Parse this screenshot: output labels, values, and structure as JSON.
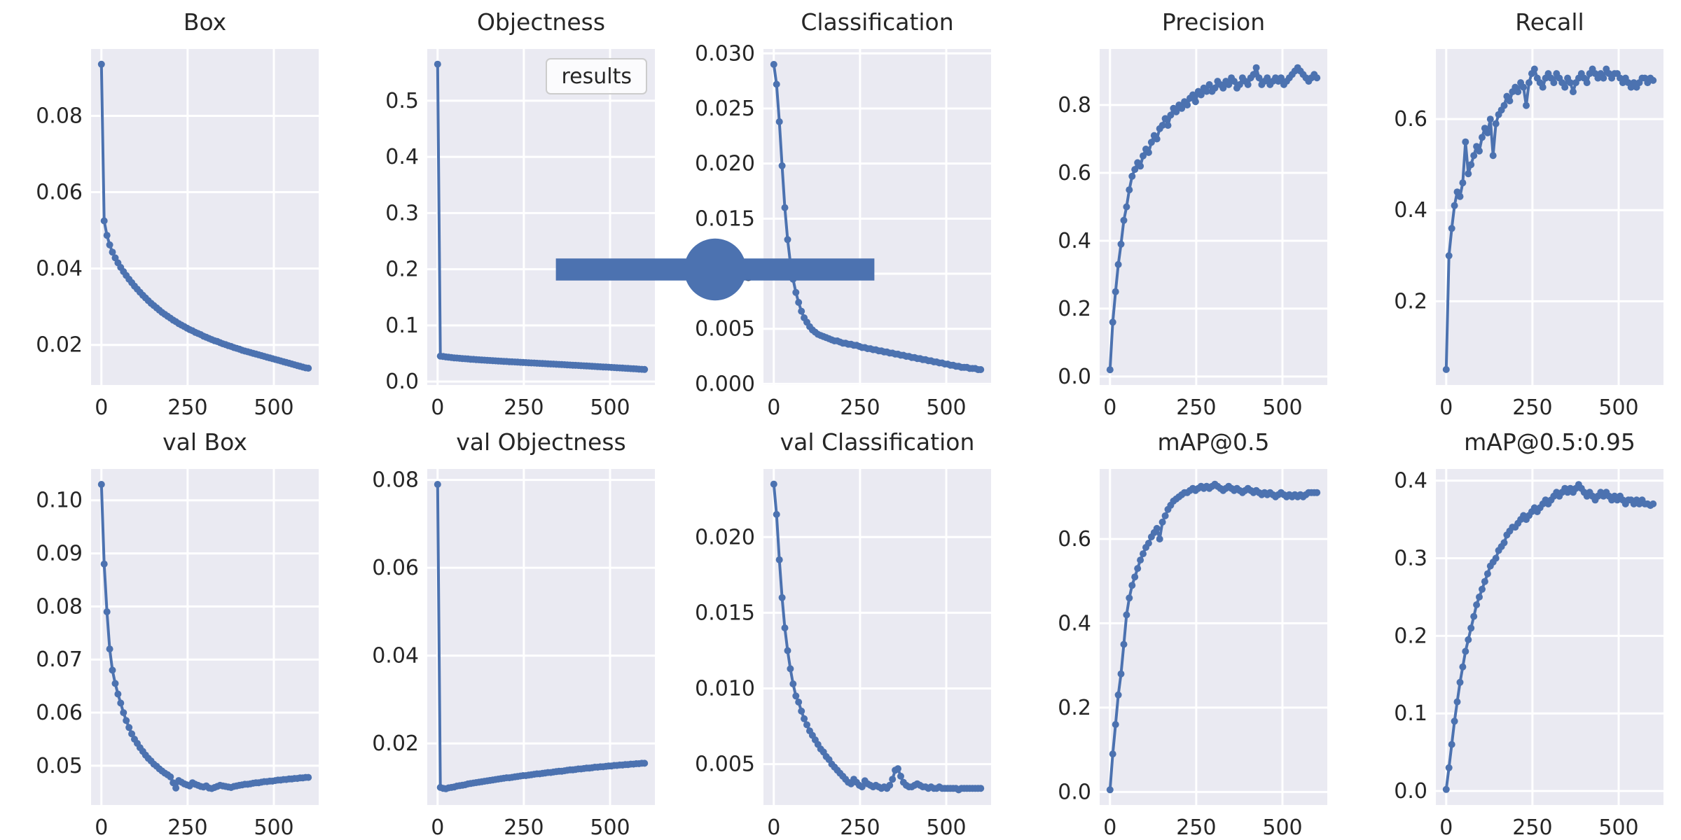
{
  "figure": {
    "background": "#ffffff",
    "axes_background": "#eaeaf2",
    "grid_color": "#ffffff",
    "accent": "#4c72b0",
    "text_color": "#262626",
    "legend_border": "#cccccc",
    "legend_label": "results"
  },
  "chart_data": [
    {
      "type": "line",
      "title": "Box",
      "xlabel": "",
      "ylabel": "",
      "x_start": 0,
      "x_step": 8,
      "xlim": [
        -30,
        630
      ],
      "ylim": [
        0.0095,
        0.0975
      ],
      "xticks": [
        0,
        250,
        500
      ],
      "xtick_labels": [
        "0",
        "250",
        "500"
      ],
      "ytick_values": [
        0.02,
        0.04,
        0.06,
        0.08
      ],
      "ytick_labels": [
        "0.02",
        "0.04",
        "0.06",
        "0.08"
      ],
      "grid": true,
      "values": [
        0.0935,
        0.0525,
        0.0487,
        0.0462,
        0.0443,
        0.0428,
        0.0415,
        0.0403,
        0.0392,
        0.0382,
        0.0372,
        0.0363,
        0.0354,
        0.0346,
        0.0338,
        0.033,
        0.0323,
        0.0316,
        0.0309,
        0.0303,
        0.0297,
        0.0291,
        0.0285,
        0.028,
        0.0275,
        0.027,
        0.0265,
        0.0261,
        0.0256,
        0.0252,
        0.0248,
        0.0244,
        0.024,
        0.0237,
        0.0233,
        0.023,
        0.0227,
        0.0223,
        0.022,
        0.0217,
        0.0214,
        0.0211,
        0.0209,
        0.0206,
        0.0203,
        0.0201,
        0.0198,
        0.0196,
        0.0193,
        0.0191,
        0.0189,
        0.0186,
        0.0184,
        0.0182,
        0.018,
        0.0178,
        0.0176,
        0.0174,
        0.0172,
        0.017,
        0.0168,
        0.0166,
        0.0164,
        0.0162,
        0.016,
        0.0158,
        0.0156,
        0.0154,
        0.0152,
        0.015,
        0.0148,
        0.0146,
        0.0144,
        0.0142,
        0.014,
        0.0139
      ]
    },
    {
      "type": "line",
      "title": "Objectness",
      "xlabel": "",
      "ylabel": "",
      "legend_label": "results",
      "legend_position": "upper right",
      "x_start": 0,
      "x_step": 8,
      "xlim": [
        -30,
        630
      ],
      "ylim": [
        -0.006,
        0.592
      ],
      "xticks": [
        0,
        250,
        500
      ],
      "xtick_labels": [
        "0",
        "250",
        "500"
      ],
      "ytick_values": [
        0.0,
        0.1,
        0.2,
        0.3,
        0.4,
        0.5
      ],
      "ytick_labels": [
        "0.0",
        "0.1",
        "0.2",
        "0.3",
        "0.4",
        "0.5"
      ],
      "grid": true,
      "values": [
        0.565,
        0.0455,
        0.0447,
        0.044,
        0.0434,
        0.0429,
        0.0424,
        0.042,
        0.0415,
        0.0411,
        0.0407,
        0.0403,
        0.0399,
        0.0396,
        0.0392,
        0.0389,
        0.0385,
        0.0382,
        0.0379,
        0.0376,
        0.0373,
        0.037,
        0.0367,
        0.0364,
        0.0361,
        0.0358,
        0.0355,
        0.0352,
        0.035,
        0.0347,
        0.0344,
        0.0341,
        0.0339,
        0.0336,
        0.0333,
        0.0331,
        0.0328,
        0.0325,
        0.0323,
        0.032,
        0.0317,
        0.0314,
        0.0312,
        0.0309,
        0.0306,
        0.0304,
        0.0301,
        0.0298,
        0.0295,
        0.0293,
        0.029,
        0.0287,
        0.0284,
        0.0281,
        0.0279,
        0.0276,
        0.0273,
        0.027,
        0.0267,
        0.0264,
        0.0262,
        0.0259,
        0.0256,
        0.0253,
        0.025,
        0.0247,
        0.0244,
        0.0241,
        0.0238,
        0.0235,
        0.0232,
        0.0229,
        0.0226,
        0.0222,
        0.0219,
        0.0216
      ]
    },
    {
      "type": "line",
      "title": "Classification",
      "xlabel": "",
      "ylabel": "",
      "x_start": 0,
      "x_step": 8,
      "xlim": [
        -30,
        630
      ],
      "ylim": [
        -0.0001,
        0.0304
      ],
      "xticks": [
        0,
        250,
        500
      ],
      "xtick_labels": [
        "0",
        "250",
        "500"
      ],
      "ytick_values": [
        0.0,
        0.005,
        0.01,
        0.015,
        0.02,
        0.025,
        0.03
      ],
      "ytick_labels": [
        "0.000",
        "0.005",
        "0.010",
        "0.015",
        "0.020",
        "0.025",
        "0.030"
      ],
      "grid": true,
      "values": [
        0.029,
        0.0272,
        0.0238,
        0.0198,
        0.016,
        0.0131,
        0.011,
        0.0095,
        0.0083,
        0.0074,
        0.0066,
        0.006,
        0.0056,
        0.0052,
        0.0049,
        0.0047,
        0.0045,
        0.0044,
        0.0043,
        0.0042,
        0.0041,
        0.004,
        0.0039,
        0.0039,
        0.0038,
        0.0037,
        0.0037,
        0.0036,
        0.0036,
        0.0035,
        0.0035,
        0.0034,
        0.0033,
        0.0033,
        0.0032,
        0.0032,
        0.0031,
        0.0031,
        0.003,
        0.003,
        0.0029,
        0.0029,
        0.0028,
        0.0028,
        0.0027,
        0.0027,
        0.0026,
        0.0026,
        0.0025,
        0.0025,
        0.0024,
        0.0024,
        0.0023,
        0.0023,
        0.0022,
        0.0022,
        0.0021,
        0.0021,
        0.002,
        0.002,
        0.0019,
        0.0019,
        0.0018,
        0.0018,
        0.0017,
        0.0017,
        0.0016,
        0.0016,
        0.0015,
        0.0015,
        0.0015,
        0.0014,
        0.0014,
        0.0014,
        0.0013,
        0.0013
      ]
    },
    {
      "type": "line",
      "title": "Precision",
      "xlabel": "",
      "ylabel": "",
      "x_start": 0,
      "x_step": 8,
      "xlim": [
        -30,
        630
      ],
      "ylim": [
        -0.025,
        0.965
      ],
      "xticks": [
        0,
        250,
        500
      ],
      "xtick_labels": [
        "0",
        "250",
        "500"
      ],
      "ytick_values": [
        0.0,
        0.2,
        0.4,
        0.6,
        0.8
      ],
      "ytick_labels": [
        "0.0",
        "0.2",
        "0.4",
        "0.6",
        "0.8"
      ],
      "grid": true,
      "values": [
        0.02,
        0.16,
        0.25,
        0.33,
        0.39,
        0.46,
        0.5,
        0.55,
        0.59,
        0.61,
        0.63,
        0.62,
        0.65,
        0.67,
        0.66,
        0.69,
        0.71,
        0.7,
        0.73,
        0.74,
        0.76,
        0.74,
        0.77,
        0.79,
        0.78,
        0.8,
        0.79,
        0.81,
        0.8,
        0.82,
        0.83,
        0.81,
        0.84,
        0.83,
        0.85,
        0.84,
        0.86,
        0.84,
        0.85,
        0.87,
        0.86,
        0.85,
        0.87,
        0.86,
        0.88,
        0.87,
        0.85,
        0.86,
        0.88,
        0.87,
        0.86,
        0.88,
        0.89,
        0.91,
        0.88,
        0.86,
        0.87,
        0.88,
        0.86,
        0.87,
        0.88,
        0.87,
        0.88,
        0.86,
        0.87,
        0.88,
        0.89,
        0.9,
        0.91,
        0.9,
        0.89,
        0.88,
        0.87,
        0.88,
        0.89,
        0.88
      ]
    },
    {
      "type": "line",
      "title": "Recall",
      "xlabel": "",
      "ylabel": "",
      "x_start": 0,
      "x_step": 8,
      "xlim": [
        -30,
        630
      ],
      "ylim": [
        0.016,
        0.754
      ],
      "xticks": [
        0,
        250,
        500
      ],
      "xtick_labels": [
        "0",
        "250",
        "500"
      ],
      "ytick_values": [
        0.2,
        0.4,
        0.6
      ],
      "ytick_labels": [
        "0.2",
        "0.4",
        "0.6"
      ],
      "grid": true,
      "values": [
        0.05,
        0.3,
        0.36,
        0.41,
        0.44,
        0.43,
        0.46,
        0.55,
        0.48,
        0.5,
        0.52,
        0.54,
        0.53,
        0.56,
        0.58,
        0.57,
        0.6,
        0.52,
        0.59,
        0.61,
        0.62,
        0.63,
        0.65,
        0.64,
        0.66,
        0.67,
        0.66,
        0.68,
        0.67,
        0.63,
        0.68,
        0.7,
        0.71,
        0.69,
        0.68,
        0.67,
        0.69,
        0.7,
        0.69,
        0.68,
        0.7,
        0.69,
        0.68,
        0.67,
        0.69,
        0.68,
        0.66,
        0.68,
        0.69,
        0.7,
        0.69,
        0.68,
        0.7,
        0.71,
        0.7,
        0.69,
        0.7,
        0.69,
        0.71,
        0.7,
        0.69,
        0.7,
        0.7,
        0.69,
        0.68,
        0.69,
        0.68,
        0.67,
        0.68,
        0.67,
        0.68,
        0.69,
        0.69,
        0.68,
        0.69,
        0.685
      ]
    },
    {
      "type": "line",
      "title": "val Box",
      "xlabel": "",
      "ylabel": "",
      "x_start": 0,
      "x_step": 8,
      "xlim": [
        -30,
        630
      ],
      "ylim": [
        0.0426,
        0.1059
      ],
      "xticks": [
        0,
        250,
        500
      ],
      "xtick_labels": [
        "0",
        "250",
        "500"
      ],
      "ytick_values": [
        0.05,
        0.06,
        0.07,
        0.08,
        0.09,
        0.1
      ],
      "ytick_labels": [
        "0.05",
        "0.06",
        "0.07",
        "0.08",
        "0.09",
        "0.10"
      ],
      "grid": true,
      "values": [
        0.103,
        0.088,
        0.079,
        0.072,
        0.068,
        0.0655,
        0.0635,
        0.0618,
        0.06,
        0.0585,
        0.0572,
        0.056,
        0.055,
        0.0542,
        0.0534,
        0.0527,
        0.052,
        0.0514,
        0.0509,
        0.0503,
        0.0499,
        0.0494,
        0.049,
        0.0486,
        0.0483,
        0.0479,
        0.0468,
        0.0458,
        0.0472,
        0.0469,
        0.0466,
        0.0464,
        0.0462,
        0.0468,
        0.0465,
        0.0463,
        0.0461,
        0.046,
        0.0462,
        0.0458,
        0.0457,
        0.0459,
        0.0461,
        0.0463,
        0.0462,
        0.0461,
        0.046,
        0.0459,
        0.0461,
        0.0462,
        0.0463,
        0.0464,
        0.0465,
        0.0465,
        0.0466,
        0.0467,
        0.0468,
        0.0468,
        0.0469,
        0.047,
        0.047,
        0.0471,
        0.0471,
        0.0472,
        0.0473,
        0.0473,
        0.0474,
        0.0474,
        0.0475,
        0.0475,
        0.0476,
        0.0476,
        0.0477,
        0.0477,
        0.0478,
        0.0478
      ]
    },
    {
      "type": "line",
      "title": "val Objectness",
      "xlabel": "",
      "ylabel": "",
      "x_start": 0,
      "x_step": 8,
      "xlim": [
        -30,
        630
      ],
      "ylim": [
        0.006,
        0.0825
      ],
      "xticks": [
        0,
        250,
        500
      ],
      "xtick_labels": [
        "0",
        "250",
        "500"
      ],
      "ytick_values": [
        0.02,
        0.04,
        0.06,
        0.08
      ],
      "ytick_labels": [
        "0.02",
        "0.04",
        "0.06",
        "0.08"
      ],
      "grid": true,
      "values": [
        0.079,
        0.01,
        0.0098,
        0.0097,
        0.0099,
        0.01,
        0.0101,
        0.0103,
        0.0104,
        0.0105,
        0.0106,
        0.0108,
        0.0109,
        0.011,
        0.0111,
        0.0112,
        0.0113,
        0.0114,
        0.0115,
        0.0116,
        0.0117,
        0.0118,
        0.0119,
        0.012,
        0.0121,
        0.0122,
        0.0122,
        0.0123,
        0.0124,
        0.0125,
        0.0126,
        0.0127,
        0.0127,
        0.0128,
        0.0129,
        0.013,
        0.0131,
        0.0131,
        0.0132,
        0.0133,
        0.0134,
        0.0134,
        0.0135,
        0.0136,
        0.0137,
        0.0137,
        0.0138,
        0.0139,
        0.014,
        0.014,
        0.0141,
        0.0142,
        0.0142,
        0.0143,
        0.0144,
        0.0144,
        0.0145,
        0.0146,
        0.0146,
        0.0147,
        0.0147,
        0.0148,
        0.0149,
        0.0149,
        0.015,
        0.015,
        0.0151,
        0.0151,
        0.0152,
        0.0152,
        0.0153,
        0.0153,
        0.0154,
        0.0154,
        0.0155,
        0.0155
      ]
    },
    {
      "type": "line",
      "title": "val Classification",
      "xlabel": "",
      "ylabel": "",
      "x_start": 0,
      "x_step": 8,
      "xlim": [
        -30,
        630
      ],
      "ylim": [
        0.0023,
        0.0245
      ],
      "xticks": [
        0,
        250,
        500
      ],
      "xtick_labels": [
        "0",
        "250",
        "500"
      ],
      "ytick_values": [
        0.005,
        0.01,
        0.015,
        0.02
      ],
      "ytick_labels": [
        "0.005",
        "0.010",
        "0.015",
        "0.020"
      ],
      "grid": true,
      "values": [
        0.0235,
        0.0215,
        0.0185,
        0.016,
        0.014,
        0.0125,
        0.0113,
        0.0103,
        0.0095,
        0.0091,
        0.0085,
        0.008,
        0.0076,
        0.0072,
        0.0069,
        0.0066,
        0.0063,
        0.006,
        0.0058,
        0.0055,
        0.0053,
        0.005,
        0.0048,
        0.0046,
        0.0044,
        0.0042,
        0.004,
        0.0038,
        0.0037,
        0.004,
        0.0038,
        0.0036,
        0.0035,
        0.0039,
        0.0037,
        0.0036,
        0.0035,
        0.0036,
        0.0035,
        0.0034,
        0.0035,
        0.0034,
        0.0036,
        0.004,
        0.0046,
        0.0047,
        0.0042,
        0.0038,
        0.0036,
        0.0035,
        0.0035,
        0.0036,
        0.0037,
        0.0036,
        0.0035,
        0.0035,
        0.0034,
        0.0035,
        0.0034,
        0.0034,
        0.0035,
        0.0034,
        0.0034,
        0.0034,
        0.0034,
        0.0034,
        0.0034,
        0.0033,
        0.0034,
        0.0034,
        0.0034,
        0.0034,
        0.0034,
        0.0034,
        0.0034,
        0.0034
      ]
    },
    {
      "type": "line",
      "title": "mAP@0.5",
      "xlabel": "",
      "ylabel": "",
      "x_start": 0,
      "x_step": 8,
      "xlim": [
        -30,
        630
      ],
      "ylim": [
        -0.031,
        0.766
      ],
      "xticks": [
        0,
        250,
        500
      ],
      "xtick_labels": [
        "0",
        "250",
        "500"
      ],
      "ytick_values": [
        0.0,
        0.2,
        0.4,
        0.6
      ],
      "ytick_labels": [
        "0.0",
        "0.2",
        "0.4",
        "0.6"
      ],
      "grid": true,
      "values": [
        0.005,
        0.09,
        0.16,
        0.23,
        0.28,
        0.35,
        0.42,
        0.46,
        0.49,
        0.51,
        0.53,
        0.55,
        0.565,
        0.58,
        0.59,
        0.605,
        0.615,
        0.625,
        0.6,
        0.64,
        0.655,
        0.67,
        0.68,
        0.69,
        0.695,
        0.7,
        0.705,
        0.71,
        0.71,
        0.715,
        0.72,
        0.715,
        0.72,
        0.725,
        0.72,
        0.725,
        0.72,
        0.725,
        0.73,
        0.725,
        0.72,
        0.715,
        0.72,
        0.725,
        0.72,
        0.715,
        0.72,
        0.715,
        0.71,
        0.715,
        0.72,
        0.715,
        0.71,
        0.715,
        0.71,
        0.705,
        0.71,
        0.705,
        0.71,
        0.705,
        0.7,
        0.705,
        0.71,
        0.705,
        0.7,
        0.705,
        0.7,
        0.705,
        0.7,
        0.705,
        0.7,
        0.705,
        0.71,
        0.71,
        0.71,
        0.71
      ]
    },
    {
      "type": "line",
      "title": "mAP@0.5:0.95",
      "xlabel": "",
      "ylabel": "",
      "x_start": 0,
      "x_step": 8,
      "xlim": [
        -30,
        630
      ],
      "ylim": [
        -0.018,
        0.415
      ],
      "xticks": [
        0,
        250,
        500
      ],
      "xtick_labels": [
        "0",
        "250",
        "500"
      ],
      "ytick_values": [
        0.0,
        0.1,
        0.2,
        0.3,
        0.4
      ],
      "ytick_labels": [
        "0.0",
        "0.1",
        "0.2",
        "0.3",
        "0.4"
      ],
      "grid": true,
      "values": [
        0.002,
        0.03,
        0.06,
        0.09,
        0.115,
        0.14,
        0.16,
        0.18,
        0.195,
        0.21,
        0.225,
        0.24,
        0.25,
        0.26,
        0.27,
        0.28,
        0.29,
        0.295,
        0.3,
        0.31,
        0.315,
        0.32,
        0.33,
        0.335,
        0.34,
        0.34,
        0.345,
        0.35,
        0.355,
        0.35,
        0.355,
        0.36,
        0.365,
        0.36,
        0.365,
        0.37,
        0.375,
        0.37,
        0.375,
        0.38,
        0.385,
        0.38,
        0.385,
        0.39,
        0.385,
        0.39,
        0.385,
        0.39,
        0.395,
        0.39,
        0.385,
        0.38,
        0.385,
        0.38,
        0.375,
        0.38,
        0.385,
        0.38,
        0.385,
        0.38,
        0.375,
        0.38,
        0.375,
        0.38,
        0.375,
        0.37,
        0.375,
        0.375,
        0.37,
        0.375,
        0.37,
        0.375,
        0.37,
        0.37,
        0.368,
        0.37
      ]
    }
  ]
}
